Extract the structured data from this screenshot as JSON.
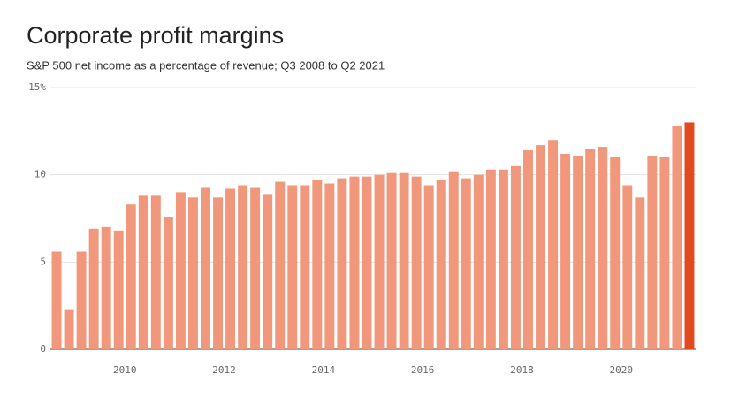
{
  "chart_data": {
    "type": "bar",
    "title": "Corporate profit margins",
    "subtitle": "S&P 500 net income as a percentage of revenue; Q3 2008 to Q2 2021",
    "categories": [
      null,
      null,
      null,
      null,
      null,
      null,
      "2010",
      null,
      null,
      null,
      null,
      null,
      null,
      null,
      "2012",
      null,
      null,
      null,
      null,
      null,
      null,
      null,
      "2014",
      null,
      null,
      null,
      null,
      null,
      null,
      null,
      "2016",
      null,
      null,
      null,
      null,
      null,
      null,
      null,
      "2018",
      null,
      null,
      null,
      null,
      null,
      null,
      null,
      "2020",
      null,
      null,
      null,
      null,
      null
    ],
    "values": [
      5.6,
      2.3,
      5.6,
      6.9,
      7.0,
      6.8,
      8.3,
      8.8,
      8.8,
      7.6,
      9.0,
      8.7,
      9.3,
      8.7,
      9.2,
      9.4,
      9.3,
      8.9,
      9.6,
      9.4,
      9.4,
      9.7,
      9.5,
      9.8,
      9.9,
      9.9,
      10.0,
      10.1,
      10.1,
      9.9,
      9.4,
      9.7,
      10.2,
      9.8,
      10.0,
      10.3,
      10.3,
      10.5,
      11.4,
      11.7,
      12.0,
      11.2,
      11.1,
      11.5,
      11.6,
      11.0,
      9.4,
      8.7,
      11.1,
      11.0,
      12.8,
      13.0
    ],
    "colors": [
      "#f0977c",
      "#f0977c",
      "#f0977c",
      "#f0977c",
      "#f0977c",
      "#f0977c",
      "#f0977c",
      "#f0977c",
      "#f0977c",
      "#f0977c",
      "#f0977c",
      "#f0977c",
      "#f0977c",
      "#f0977c",
      "#f0977c",
      "#f0977c",
      "#f0977c",
      "#f0977c",
      "#f0977c",
      "#f0977c",
      "#f0977c",
      "#f0977c",
      "#f0977c",
      "#f0977c",
      "#f0977c",
      "#f0977c",
      "#f0977c",
      "#f0977c",
      "#f0977c",
      "#f0977c",
      "#f0977c",
      "#f0977c",
      "#f0977c",
      "#f0977c",
      "#f0977c",
      "#f0977c",
      "#f0977c",
      "#f0977c",
      "#f0977c",
      "#f0977c",
      "#f0977c",
      "#f0977c",
      "#f0977c",
      "#f0977c",
      "#f0977c",
      "#f0977c",
      "#f0977c",
      "#f0977c",
      "#f0977c",
      "#f0977c",
      "#f0977c",
      "#e2491f"
    ],
    "ylim": [
      0,
      15
    ],
    "yticks": [
      0,
      5,
      10,
      {
        "value": 15,
        "label": "15%"
      }
    ],
    "grid": true
  }
}
